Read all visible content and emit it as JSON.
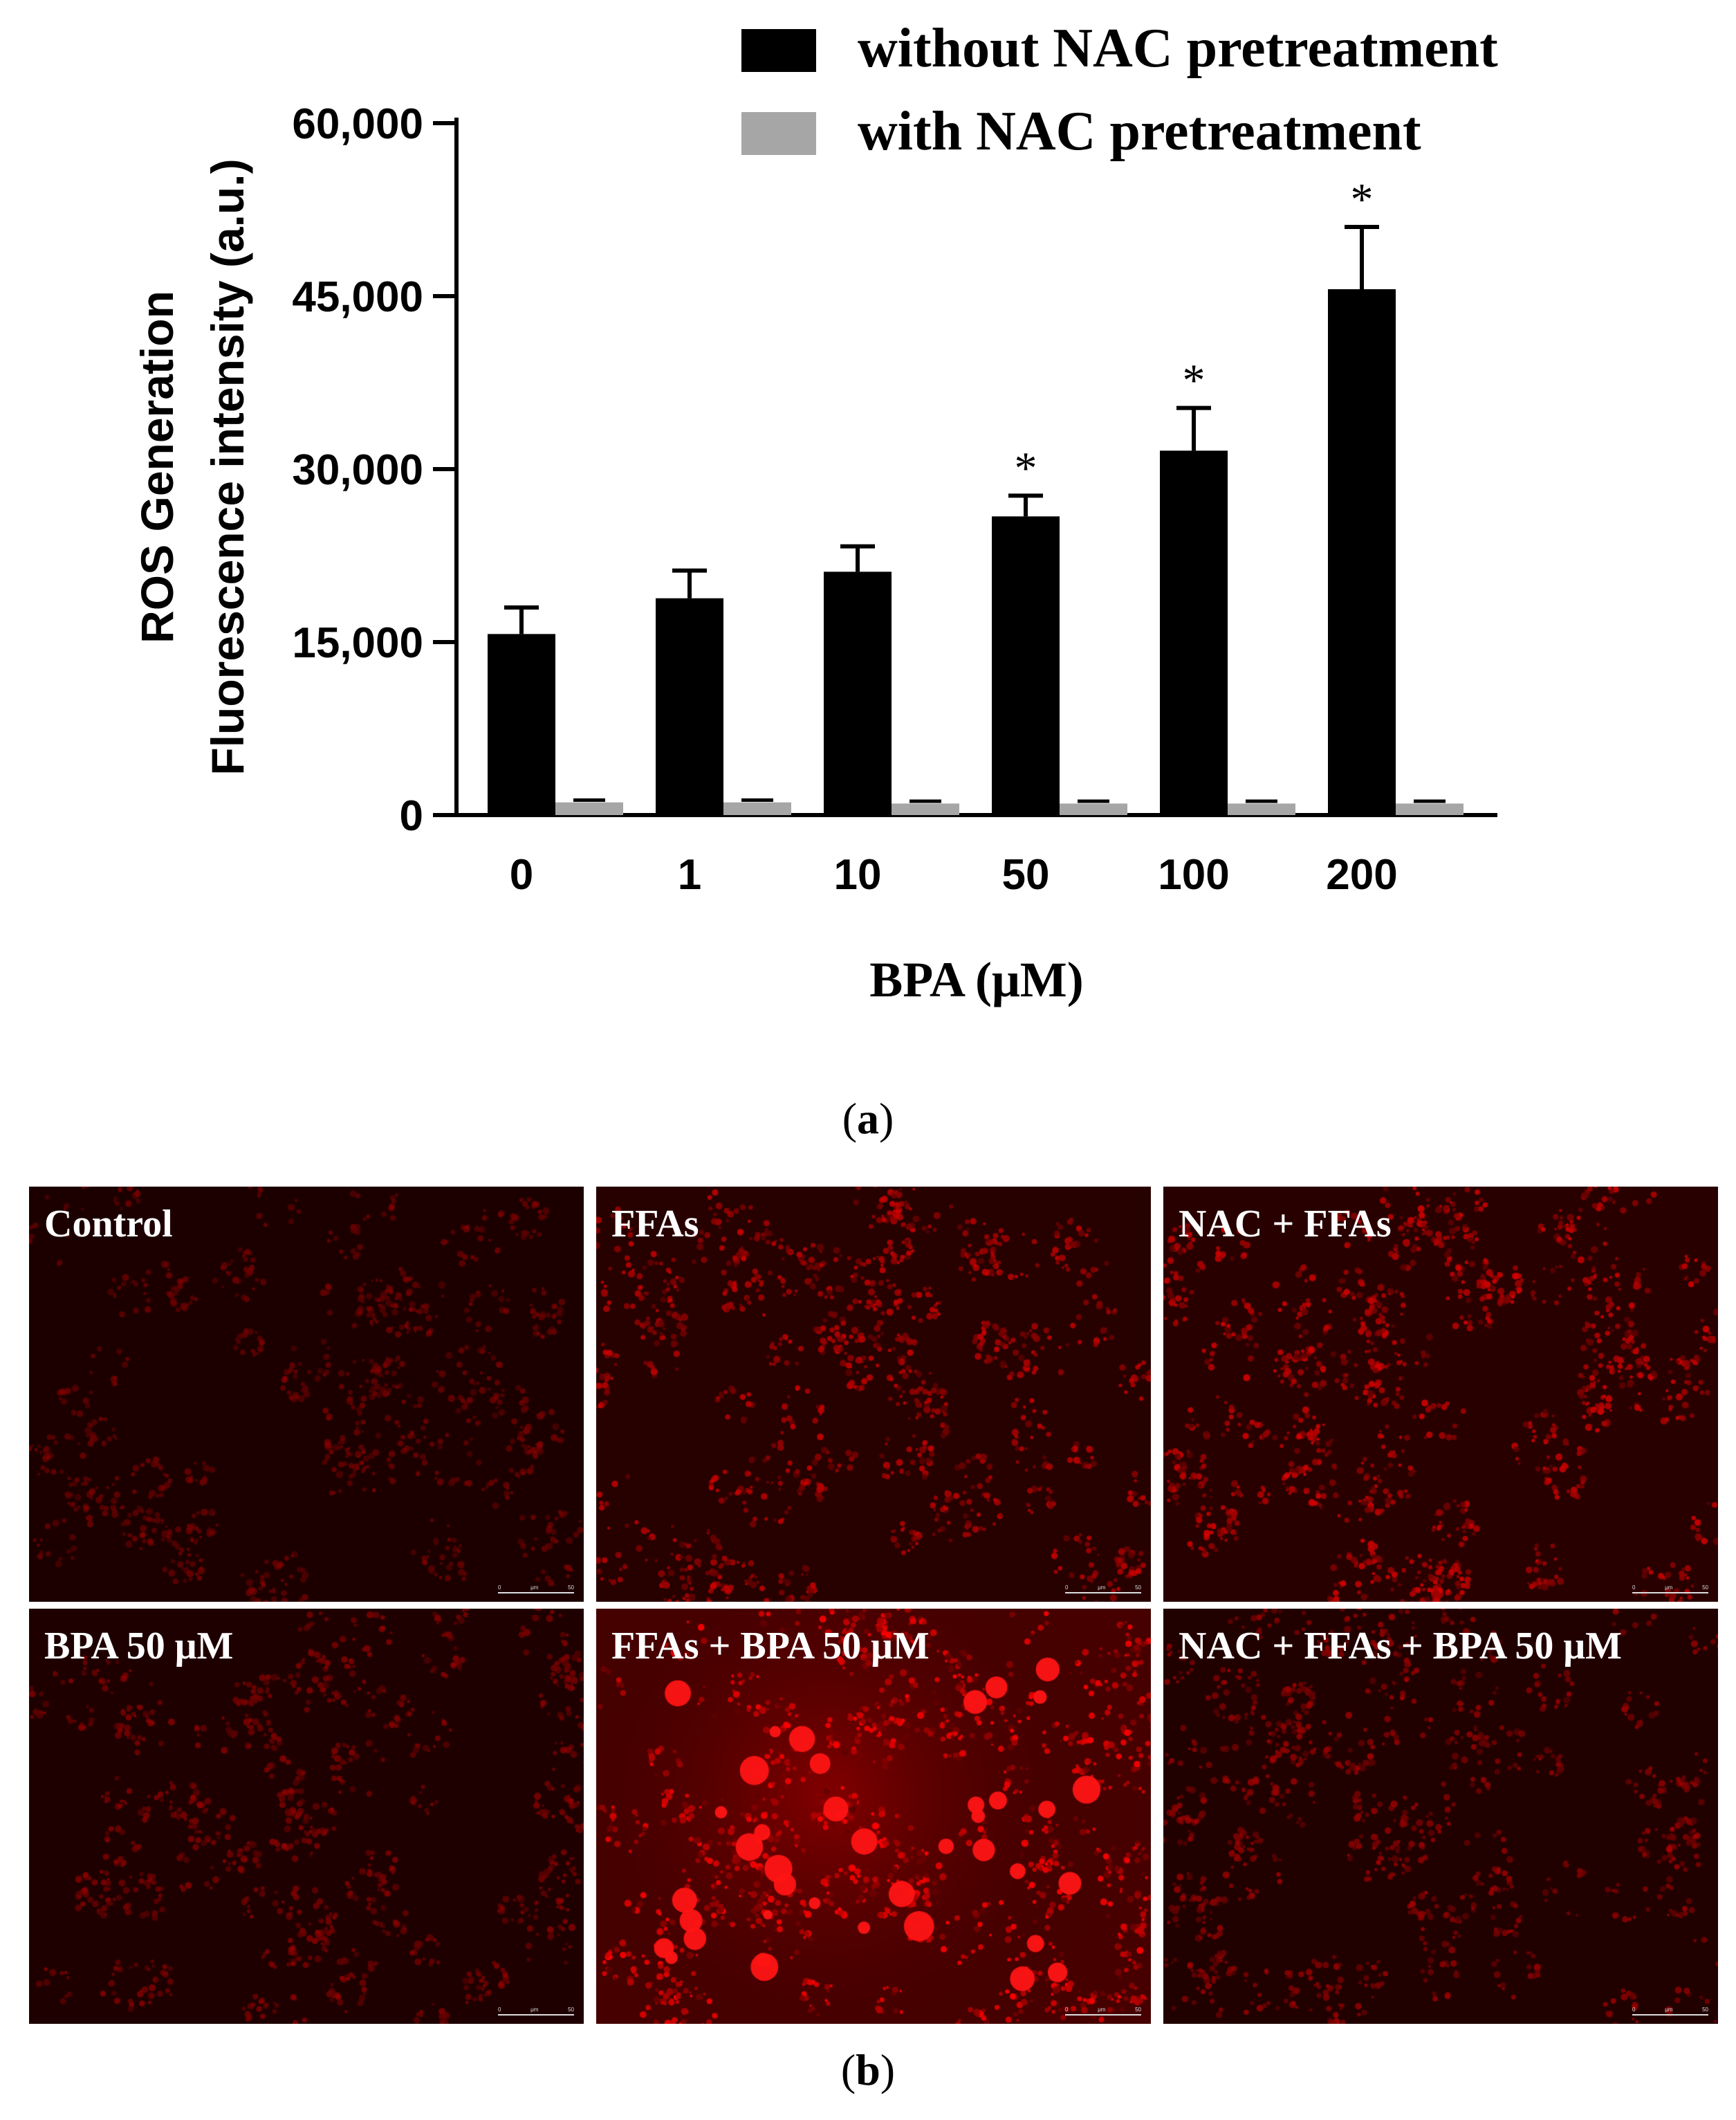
{
  "chart_data": {
    "type": "bar",
    "categories": [
      "0",
      "1",
      "10",
      "50",
      "100",
      "200"
    ],
    "series": [
      {
        "name": "without NAC pretreatment",
        "color": "#000000",
        "values": [
          15700,
          18800,
          21100,
          25900,
          31600,
          45600
        ],
        "errors": [
          2300,
          2400,
          2200,
          1800,
          3700,
          5400
        ]
      },
      {
        "name": "with NAC pretreatment",
        "color": "#a6a6a6",
        "values": [
          1100,
          1100,
          1000,
          1000,
          1000,
          1000
        ],
        "errors": [
          200,
          200,
          200,
          200,
          200,
          200
        ]
      }
    ],
    "significance": [
      "",
      "",
      "",
      "*",
      "*",
      "*"
    ],
    "ylabel_line1": "ROS Generation",
    "ylabel_line2": "Fluorescence intensity (a.u.)",
    "xlabel": "BPA (μM)",
    "ylim": [
      0,
      60000
    ],
    "yticks": [
      0,
      15000,
      30000,
      45000,
      60000
    ],
    "ytick_labels": [
      "0",
      "15,000",
      "30,000",
      "45,000",
      "60,000"
    ],
    "legend_position": "top-right",
    "grid": false
  },
  "captions": {
    "a_letter": "a",
    "b_letter": "b"
  },
  "micrographs": [
    {
      "label": "Control",
      "intensity": 0.35,
      "blobs": 0
    },
    {
      "label": "FFAs",
      "intensity": 0.75,
      "blobs": 0
    },
    {
      "label": "NAC + FFAs",
      "intensity": 0.8,
      "blobs": 0
    },
    {
      "label": "BPA 50 μM",
      "intensity": 0.45,
      "blobs": 0
    },
    {
      "label": "FFAs + BPA 50 μM",
      "intensity": 1.0,
      "blobs": 1
    },
    {
      "label": "NAC + FFAs + BPA 50 μM",
      "intensity": 0.55,
      "blobs": 0
    }
  ],
  "scale_bar_text": [
    "0",
    "μm",
    "50"
  ]
}
